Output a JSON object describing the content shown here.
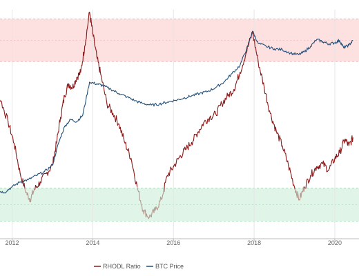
{
  "chart_data": {
    "type": "line",
    "title": "",
    "xlabel": "",
    "ylabel": "",
    "x_ticks": [
      "2012",
      "2014",
      "2016",
      "2018",
      "2020"
    ],
    "y_scale": "log",
    "grid": true,
    "legend_placement": "bottom-center",
    "bands": [
      {
        "kind": "overheated",
        "color": "#fde0e0",
        "line_color": "#e8a0a0"
      },
      {
        "kind": "undervalued",
        "color": "#e0f5e8",
        "line_color": "#9fd4b2"
      }
    ],
    "series": [
      {
        "name": "RHODL Ratio",
        "color": "#8b1a1a",
        "low_color": "#b39a90",
        "points": [
          [
            "2011.40",
            0.22
          ],
          [
            "2011.55",
            0.2
          ],
          [
            "2011.72",
            0.14
          ],
          [
            "2011.90",
            0.08
          ],
          [
            "2012.05",
            0.045
          ],
          [
            "2012.20",
            0.02
          ],
          [
            "2012.35",
            0.012
          ],
          [
            "2012.45",
            0.01
          ],
          [
            "2012.55",
            0.013
          ],
          [
            "2012.70",
            0.016
          ],
          [
            "2012.85",
            0.02
          ],
          [
            "2013.00",
            0.025
          ],
          [
            "2013.10",
            0.045
          ],
          [
            "2013.20",
            0.09
          ],
          [
            "2013.30",
            0.16
          ],
          [
            "2013.40",
            0.22
          ],
          [
            "2013.50",
            0.2
          ],
          [
            "2013.60",
            0.26
          ],
          [
            "2013.70",
            0.3
          ],
          [
            "2013.80",
            0.6
          ],
          [
            "2013.92",
            1.5
          ],
          [
            "2014.00",
            0.85
          ],
          [
            "2014.10",
            0.45
          ],
          [
            "2014.20",
            0.28
          ],
          [
            "2014.35",
            0.13
          ],
          [
            "2014.50",
            0.1
          ],
          [
            "2014.65",
            0.075
          ],
          [
            "2014.80",
            0.045
          ],
          [
            "2014.95",
            0.03
          ],
          [
            "2015.10",
            0.014
          ],
          [
            "2015.25",
            0.0075
          ],
          [
            "2015.40",
            0.0062
          ],
          [
            "2015.55",
            0.0075
          ],
          [
            "2015.70",
            0.01
          ],
          [
            "2015.85",
            0.019
          ],
          [
            "2016.00",
            0.024
          ],
          [
            "2016.15",
            0.031
          ],
          [
            "2016.30",
            0.038
          ],
          [
            "2016.45",
            0.046
          ],
          [
            "2016.60",
            0.06
          ],
          [
            "2016.75",
            0.078
          ],
          [
            "2016.90",
            0.09
          ],
          [
            "2017.05",
            0.098
          ],
          [
            "2017.20",
            0.13
          ],
          [
            "2017.35",
            0.16
          ],
          [
            "2017.50",
            0.19
          ],
          [
            "2017.65",
            0.3
          ],
          [
            "2017.80",
            0.5
          ],
          [
            "2017.96",
            0.88
          ],
          [
            "2018.10",
            0.4
          ],
          [
            "2018.25",
            0.2
          ],
          [
            "2018.40",
            0.1
          ],
          [
            "2018.55",
            0.062
          ],
          [
            "2018.70",
            0.042
          ],
          [
            "2018.85",
            0.025
          ],
          [
            "2019.00",
            0.014
          ],
          [
            "2019.12",
            0.01
          ],
          [
            "2019.25",
            0.014
          ],
          [
            "2019.40",
            0.019
          ],
          [
            "2019.55",
            0.024
          ],
          [
            "2019.70",
            0.026
          ],
          [
            "2019.85",
            0.022
          ],
          [
            "2020.00",
            0.03
          ],
          [
            "2020.12",
            0.035
          ],
          [
            "2020.25",
            0.05
          ],
          [
            "2020.35",
            0.042
          ],
          [
            "2020.45",
            0.052
          ]
        ]
      },
      {
        "name": "BTC Price",
        "color": "#1f4e79",
        "points": [
          [
            "2011.40",
            0.015
          ],
          [
            "2011.60",
            0.013
          ],
          [
            "2011.80",
            0.012
          ],
          [
            "2012.00",
            0.014
          ],
          [
            "2012.20",
            0.016
          ],
          [
            "2012.40",
            0.017
          ],
          [
            "2012.60",
            0.019
          ],
          [
            "2012.80",
            0.021
          ],
          [
            "2013.00",
            0.025
          ],
          [
            "2013.15",
            0.045
          ],
          [
            "2013.30",
            0.07
          ],
          [
            "2013.45",
            0.085
          ],
          [
            "2013.60",
            0.08
          ],
          [
            "2013.75",
            0.095
          ],
          [
            "2013.92",
            0.23
          ],
          [
            "2014.10",
            0.22
          ],
          [
            "2014.25",
            0.21
          ],
          [
            "2014.45",
            0.19
          ],
          [
            "2014.65",
            0.17
          ],
          [
            "2014.85",
            0.155
          ],
          [
            "2015.05",
            0.14
          ],
          [
            "2015.25",
            0.13
          ],
          [
            "2015.45",
            0.125
          ],
          [
            "2015.65",
            0.128
          ],
          [
            "2015.85",
            0.135
          ],
          [
            "2016.05",
            0.142
          ],
          [
            "2016.25",
            0.15
          ],
          [
            "2016.45",
            0.16
          ],
          [
            "2016.65",
            0.17
          ],
          [
            "2016.85",
            0.18
          ],
          [
            "2017.05",
            0.2
          ],
          [
            "2017.25",
            0.23
          ],
          [
            "2017.45",
            0.29
          ],
          [
            "2017.65",
            0.36
          ],
          [
            "2017.85",
            0.62
          ],
          [
            "2017.96",
            0.9
          ],
          [
            "2018.10",
            0.65
          ],
          [
            "2018.30",
            0.6
          ],
          [
            "2018.50",
            0.56
          ],
          [
            "2018.70",
            0.55
          ],
          [
            "2018.90",
            0.5
          ],
          [
            "2019.10",
            0.48
          ],
          [
            "2019.25",
            0.52
          ],
          [
            "2019.40",
            0.6
          ],
          [
            "2019.55",
            0.72
          ],
          [
            "2019.70",
            0.68
          ],
          [
            "2019.85",
            0.64
          ],
          [
            "2020.00",
            0.66
          ],
          [
            "2020.12",
            0.7
          ],
          [
            "2020.22",
            0.58
          ],
          [
            "2020.35",
            0.62
          ],
          [
            "2020.45",
            0.7
          ]
        ]
      }
    ]
  }
}
